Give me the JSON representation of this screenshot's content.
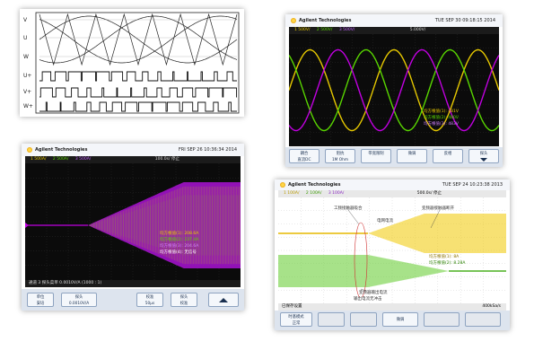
{
  "panel1": {
    "labels": [
      "V",
      "U",
      "W",
      "U+",
      "V+",
      "W+"
    ]
  },
  "panel2": {
    "brand": "Agilent Technologies",
    "date": "TUE SEP 30 09:18:15 2014",
    "channels": [
      "1 500V/",
      "2 500V/",
      "3 500V/"
    ],
    "timebase": "5.000V/",
    "meas": [
      "均方根值(1): 481V",
      "均方根值(2): 480V",
      "均方根值(3): 483V"
    ],
    "keys": [
      "耦合\n直流DC",
      "阻抗\n1M Ohm",
      "带宽限制",
      "微调",
      "反相",
      "探头"
    ]
  },
  "panel3": {
    "brand": "Agilent Technologies",
    "date": "FRI SEP 26 10:36:34 2014",
    "channels": [
      "1 500A/",
      "2 500A/",
      "3 500A/"
    ],
    "status": "100.0s/    停止",
    "meas": [
      "均方根值(1): 208.6A",
      "均方根值(2): 237.4A",
      "均方根值(3): 204.6A",
      "均方根值(4): 无信号"
    ],
    "footer": "通道 3 探头菜单   0.0010V/A (1000 : 1)",
    "keys": [
      "单位\n安培",
      "探头\n0.0010V/A",
      "校准\n50μs",
      "探头\n校准"
    ]
  },
  "panel4": {
    "brand": "Agilent Technologies",
    "date": "TUE SEP 24 10:23:38 2013",
    "channels": [
      "1 100A/",
      "2 100A/",
      "3 100A/"
    ],
    "timebase": "500.0s/   停止",
    "annotations": [
      "工频接触器吸合",
      "变频器接触器断开",
      "电网电流",
      "变频器输出电流",
      "输出电流无冲击"
    ],
    "meas": [
      "均方根值(1): 8A",
      "均方根值(2): 8.28A"
    ],
    "sample": "400kSa/s",
    "footer": "已保存设置",
    "keys": [
      "时基模式\n正常",
      "",
      "",
      "微调",
      "",
      ""
    ]
  },
  "colors": {
    "yellow": "#e6c800",
    "green": "#59d600",
    "magenta": "#c000e0",
    "screen_bg": "#0b0b0b"
  }
}
